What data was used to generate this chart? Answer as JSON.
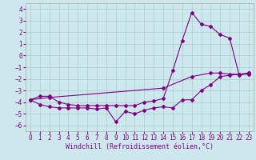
{
  "xlabel": "Windchill (Refroidissement éolien,°C)",
  "background_color": "#cce8ec",
  "grid_color": "#aacccc",
  "line_color": "#800080",
  "xlim": [
    -0.5,
    23.5
  ],
  "ylim": [
    -6.5,
    4.5
  ],
  "yticks": [
    -6,
    -5,
    -4,
    -3,
    -2,
    -1,
    0,
    1,
    2,
    3,
    4
  ],
  "xticks": [
    0,
    1,
    2,
    3,
    4,
    5,
    6,
    7,
    8,
    9,
    10,
    11,
    12,
    13,
    14,
    15,
    16,
    17,
    18,
    19,
    20,
    21,
    22,
    23
  ],
  "line1_x": [
    0,
    1,
    2,
    3,
    4,
    5,
    6,
    7,
    8,
    9,
    10,
    11,
    12,
    13,
    14,
    15,
    16,
    17,
    18,
    19,
    20,
    21,
    22,
    23
  ],
  "line1_y": [
    -3.8,
    -4.2,
    -4.4,
    -4.5,
    -4.5,
    -4.5,
    -4.5,
    -4.6,
    -4.5,
    -5.7,
    -4.8,
    -5.0,
    -4.7,
    -4.5,
    -4.4,
    -4.5,
    -3.8,
    -3.8,
    -3.0,
    -2.5,
    -1.8,
    -1.7,
    -1.6,
    -1.6
  ],
  "line2_x": [
    0,
    1,
    2,
    3,
    4,
    5,
    6,
    7,
    8,
    9,
    10,
    11,
    12,
    13,
    14,
    15,
    16,
    17,
    18,
    19,
    20,
    21,
    22,
    23
  ],
  "line2_y": [
    -3.8,
    -3.5,
    -3.5,
    -4.0,
    -4.2,
    -4.3,
    -4.3,
    -4.3,
    -4.3,
    -4.3,
    -4.3,
    -4.3,
    -4.0,
    -3.9,
    -3.7,
    -1.3,
    1.3,
    3.7,
    2.7,
    2.5,
    1.8,
    1.5,
    -1.7,
    -1.5
  ],
  "line3_x": [
    0,
    2,
    14,
    17,
    19,
    20,
    21,
    22,
    23
  ],
  "line3_y": [
    -3.8,
    -3.6,
    -2.8,
    -1.8,
    -1.5,
    -1.5,
    -1.6,
    -1.6,
    -1.5
  ],
  "tick_fontsize": 5.5,
  "xlabel_fontsize": 6.0
}
